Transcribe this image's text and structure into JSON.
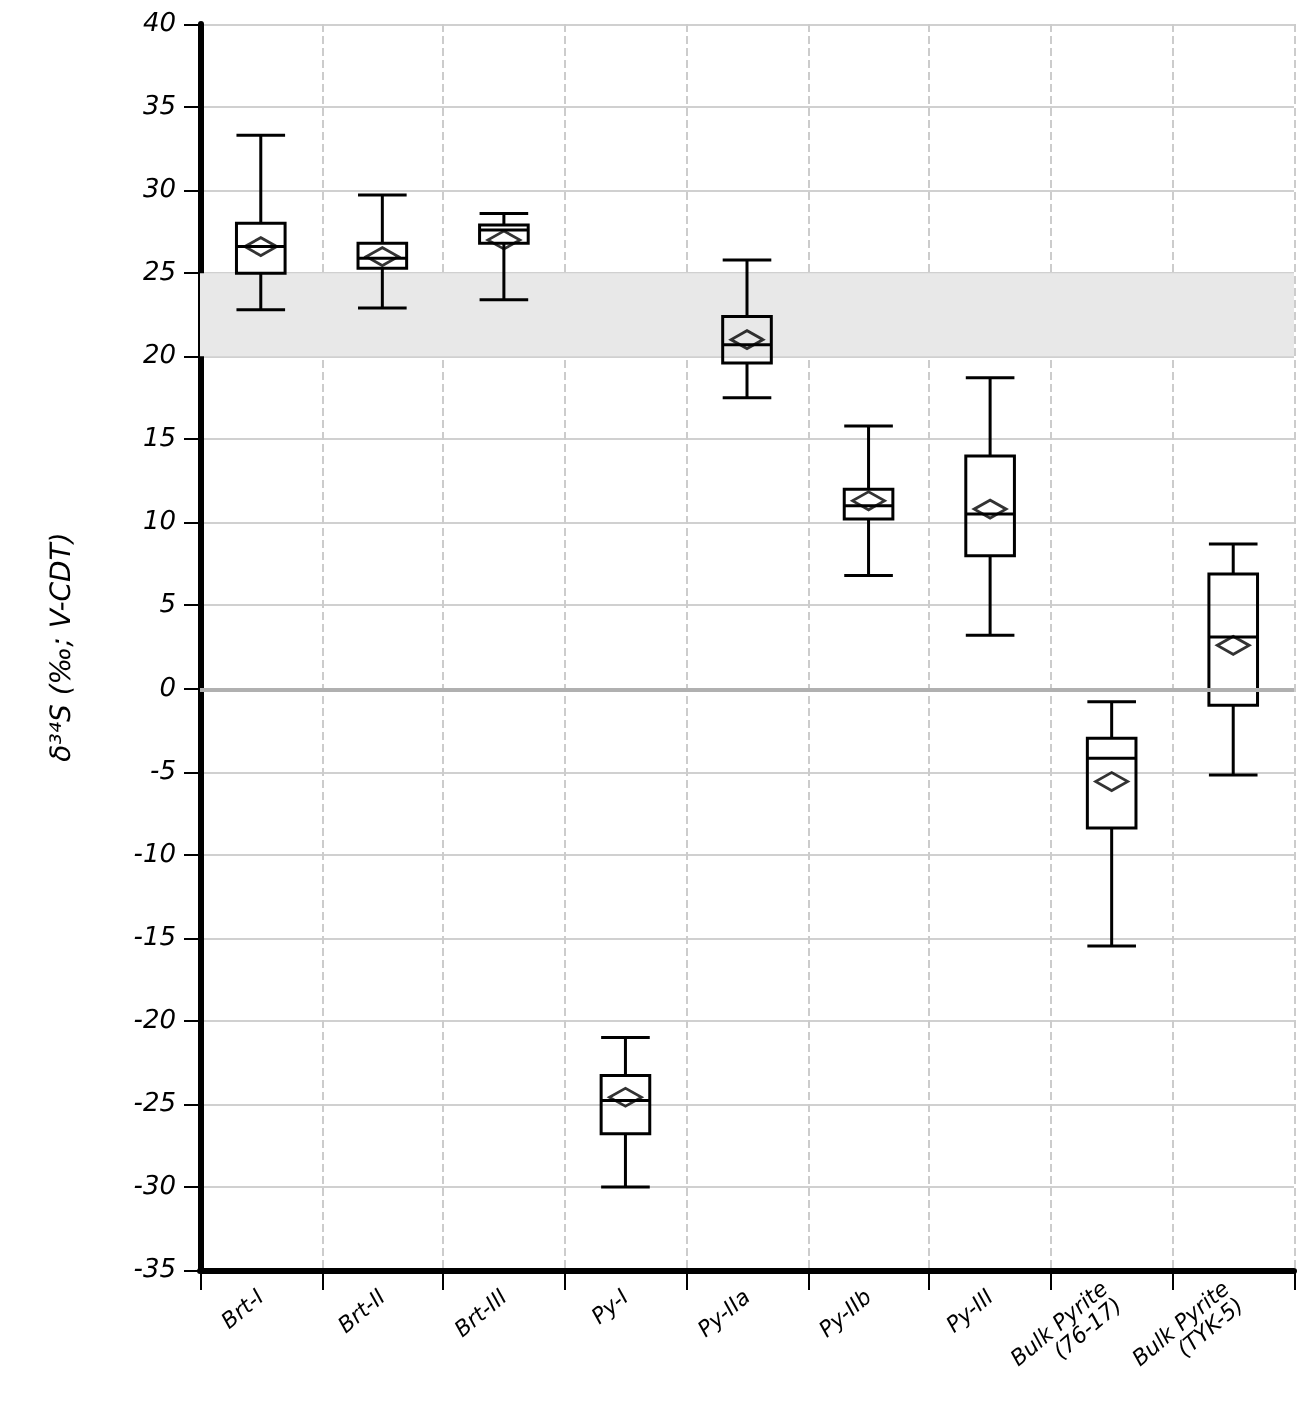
{
  "chart_data": {
    "type": "box",
    "ylabel": "δ³⁴S (‰; V-CDT)",
    "categories": [
      "Brt-I",
      "Brt-II",
      "Brt-III",
      "Py-I",
      "Py-IIa",
      "Py-IIb",
      "Py-III",
      "Bulk Pyrite\n(76-17)",
      "Bulk Pyrite\n(TYK-5)"
    ],
    "boxes": [
      {
        "low": 22.8,
        "q1": 25,
        "median": 26.6,
        "q3": 28,
        "high": 33.3,
        "mean": 26.6
      },
      {
        "low": 22.9,
        "q1": 25.3,
        "median": 25.9,
        "q3": 26.8,
        "high": 29.7,
        "mean": 26
      },
      {
        "low": 23.4,
        "q1": 26.8,
        "median": 27.6,
        "q3": 27.9,
        "high": 28.6,
        "mean": 27
      },
      {
        "low": -30,
        "q1": -26.8,
        "median": -24.8,
        "q3": -23.3,
        "high": -21,
        "mean": -24.6
      },
      {
        "low": 17.5,
        "q1": 19.6,
        "median": 20.7,
        "q3": 22.4,
        "high": 25.8,
        "mean": 21
      },
      {
        "low": 6.8,
        "q1": 10.2,
        "median": 11,
        "q3": 12,
        "high": 15.8,
        "mean": 11.3
      },
      {
        "low": 3.2,
        "q1": 8,
        "median": 10.5,
        "q3": 14,
        "high": 18.7,
        "mean": 10.8
      },
      {
        "low": -15.5,
        "q1": -8.4,
        "median": -4.2,
        "q3": -3,
        "high": -0.8,
        "mean": -5.6
      },
      {
        "low": -5.2,
        "q1": -1,
        "median": 3.1,
        "q3": 6.9,
        "high": 8.7,
        "mean": 2.6
      }
    ],
    "color": "#000000",
    "ylim": [
      -35,
      40
    ],
    "yticks": [
      -35,
      -30,
      -25,
      -20,
      -15,
      -10,
      -5,
      0,
      5,
      10,
      15,
      20,
      25,
      30,
      35,
      40
    ],
    "grid": true,
    "marker": "diamond",
    "ref_lines": [
      {
        "axis": "y",
        "value": 0,
        "label": null,
        "color": "#b0b0b0"
      }
    ],
    "bands": [
      {
        "axis": "y",
        "from": 20,
        "to": 25,
        "label": null,
        "color": "#e8e8e8"
      }
    ]
  }
}
